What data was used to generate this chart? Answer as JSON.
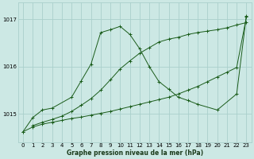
{
  "title": "Graphe pression niveau de la mer (hPa)",
  "background_color": "#cce8e4",
  "grid_color": "#aad0cc",
  "line_color": "#1a5c1a",
  "ylim": [
    1014.4,
    1017.35
  ],
  "xlim": [
    -0.5,
    23.5
  ],
  "yticks": [
    1015,
    1016,
    1017
  ],
  "xticks": [
    0,
    1,
    2,
    3,
    4,
    5,
    6,
    7,
    8,
    9,
    10,
    11,
    12,
    13,
    14,
    15,
    16,
    17,
    18,
    19,
    20,
    21,
    22,
    23
  ],
  "line1_x": [
    0,
    1,
    2,
    3,
    4,
    5,
    6,
    7,
    8,
    9,
    10,
    11,
    12,
    13,
    14,
    15,
    16,
    17,
    18,
    19,
    20,
    21,
    22,
    23
  ],
  "line1_y": [
    1014.62,
    1014.72,
    1014.78,
    1014.82,
    1014.86,
    1014.9,
    1014.93,
    1014.97,
    1015.01,
    1015.05,
    1015.1,
    1015.15,
    1015.2,
    1015.25,
    1015.3,
    1015.35,
    1015.42,
    1015.5,
    1015.58,
    1015.68,
    1015.78,
    1015.88,
    1015.98,
    1017.05
  ],
  "line2_x": [
    1,
    2,
    3,
    4,
    5,
    6,
    7,
    8,
    9,
    10,
    11,
    12,
    13,
    14,
    15,
    16,
    17,
    18,
    19,
    20,
    21,
    22,
    23
  ],
  "line2_y": [
    1014.75,
    1014.82,
    1014.88,
    1014.95,
    1015.05,
    1015.18,
    1015.32,
    1015.5,
    1015.72,
    1015.95,
    1016.12,
    1016.28,
    1016.4,
    1016.52,
    1016.58,
    1016.62,
    1016.68,
    1016.72,
    1016.75,
    1016.78,
    1016.82,
    1016.88,
    1016.93
  ],
  "line3_x": [
    0,
    1,
    2,
    3,
    5,
    6,
    7,
    8,
    9,
    10,
    11,
    12,
    13,
    14,
    15,
    16,
    17,
    18,
    20,
    22,
    23
  ],
  "line3_y": [
    1014.62,
    1014.92,
    1015.08,
    1015.12,
    1015.35,
    1015.7,
    1016.05,
    1016.72,
    1016.78,
    1016.85,
    1016.68,
    1016.38,
    1016.0,
    1015.68,
    1015.52,
    1015.35,
    1015.28,
    1015.2,
    1015.08,
    1015.42,
    1017.08
  ]
}
